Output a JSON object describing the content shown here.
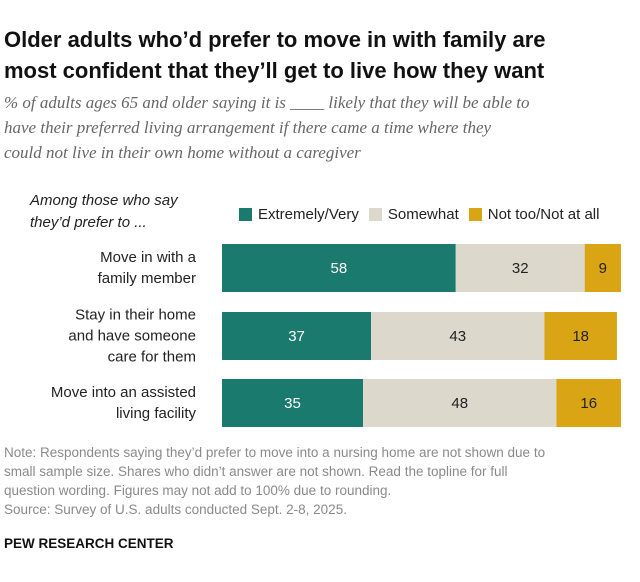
{
  "chart_data": {
    "type": "stacked-bar",
    "title": "Older adults who’d prefer to move in with family are\nmost confident that they’ll get to live how they want",
    "subtitle": "% of adults ages 65 and older saying it is ____ likely that they will be able to\nhave their preferred living arrangement if there came a time where they\ncould not live in their own home without a caregiver",
    "legend_title": "Among those who say\nthey’d prefer to ...",
    "categories": [
      "Move in with a\nfamily member",
      "Stay in their home\nand have someone\ncare for them",
      "Move into an assisted\nliving facility"
    ],
    "series": [
      {
        "name": "Extremely/Very",
        "color": "#1b7a6e",
        "values": [
          58,
          37,
          35
        ]
      },
      {
        "name": "Somewhat",
        "color": "#dcd8cc",
        "values": [
          32,
          43,
          48
        ]
      },
      {
        "name": "Not too/Not at all",
        "color": "#d9a514",
        "values": [
          9,
          18,
          16
        ]
      }
    ],
    "xlim": [
      0,
      100
    ],
    "note": "Note: Respondents saying they’d prefer to move into a nursing home are not shown due to\nsmall sample size. Shares who didn’t answer are not shown. Read the topline for full\nquestion wording. Figures may not add to 100% due to rounding.\nSource: Survey of U.S. adults conducted Sept. 2-8, 2025.",
    "source_org": "PEW RESEARCH CENTER"
  }
}
